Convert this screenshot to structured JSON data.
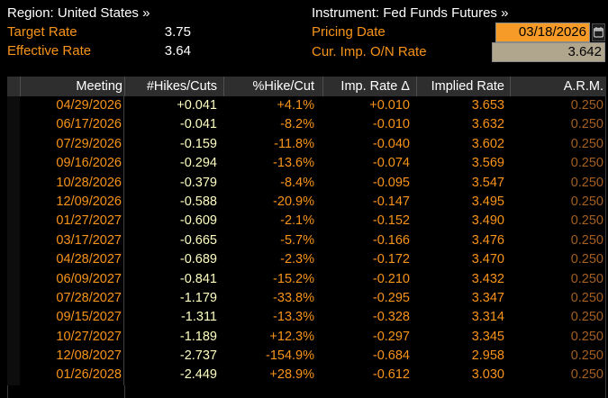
{
  "header": {
    "region": "Region: United States »",
    "instrument": "Instrument: Fed Funds Futures »",
    "target_rate": {
      "label": "Target Rate",
      "value": "3.75"
    },
    "effective_rate": {
      "label": "Effective Rate",
      "value": "3.64"
    },
    "pricing_date": {
      "label": "Pricing Date",
      "value": "03/18/2026"
    },
    "cur_imp_on_rate": {
      "label": "Cur. Imp. O/N Rate",
      "value": "3.642"
    },
    "icons": {
      "pricing_date_button": "calendar-icon"
    }
  },
  "table": {
    "columns": [
      "Meeting",
      "#Hikes/Cuts",
      "%Hike/Cut",
      "Imp. Rate Δ",
      "Implied Rate",
      "A.R.M."
    ],
    "rows": [
      [
        "04/29/2026",
        "+0.041",
        "+4.1%",
        "+0.010",
        "3.653",
        "0.250"
      ],
      [
        "06/17/2026",
        "-0.041",
        "-8.2%",
        "-0.010",
        "3.632",
        "0.250"
      ],
      [
        "07/29/2026",
        "-0.159",
        "-11.8%",
        "-0.040",
        "3.602",
        "0.250"
      ],
      [
        "09/16/2026",
        "-0.294",
        "-13.6%",
        "-0.074",
        "3.569",
        "0.250"
      ],
      [
        "10/28/2026",
        "-0.379",
        "-8.4%",
        "-0.095",
        "3.547",
        "0.250"
      ],
      [
        "12/09/2026",
        "-0.588",
        "-20.9%",
        "-0.147",
        "3.495",
        "0.250"
      ],
      [
        "01/27/2027",
        "-0.609",
        "-2.1%",
        "-0.152",
        "3.490",
        "0.250"
      ],
      [
        "03/17/2027",
        "-0.665",
        "-5.7%",
        "-0.166",
        "3.476",
        "0.250"
      ],
      [
        "04/28/2027",
        "-0.689",
        "-2.3%",
        "-0.172",
        "3.470",
        "0.250"
      ],
      [
        "06/09/2027",
        "-0.841",
        "-15.2%",
        "-0.210",
        "3.432",
        "0.250"
      ],
      [
        "07/28/2027",
        "-1.179",
        "-33.8%",
        "-0.295",
        "3.347",
        "0.250"
      ],
      [
        "09/15/2027",
        "-1.311",
        "-13.3%",
        "-0.328",
        "3.314",
        "0.250"
      ],
      [
        "10/27/2027",
        "-1.189",
        "+12.3%",
        "-0.297",
        "3.345",
        "0.250"
      ],
      [
        "12/08/2027",
        "-2.737",
        "-154.9%",
        "-0.684",
        "2.958",
        "0.250"
      ],
      [
        "01/26/2028",
        "-2.449",
        "+28.9%",
        "-0.612",
        "3.030",
        "0.250"
      ]
    ]
  },
  "colors": {
    "background": "#000000",
    "label_orange": "#f8941a",
    "data_orange": "#f8941a",
    "pale_yellow": "#ffffc2",
    "dim_amber": "#a35f22",
    "pricing_field_bg": "#f69b27",
    "rate_field_bg": "#b0a68e",
    "table_header_bg": "#2e2e2e",
    "text_white": "#ffffff"
  }
}
